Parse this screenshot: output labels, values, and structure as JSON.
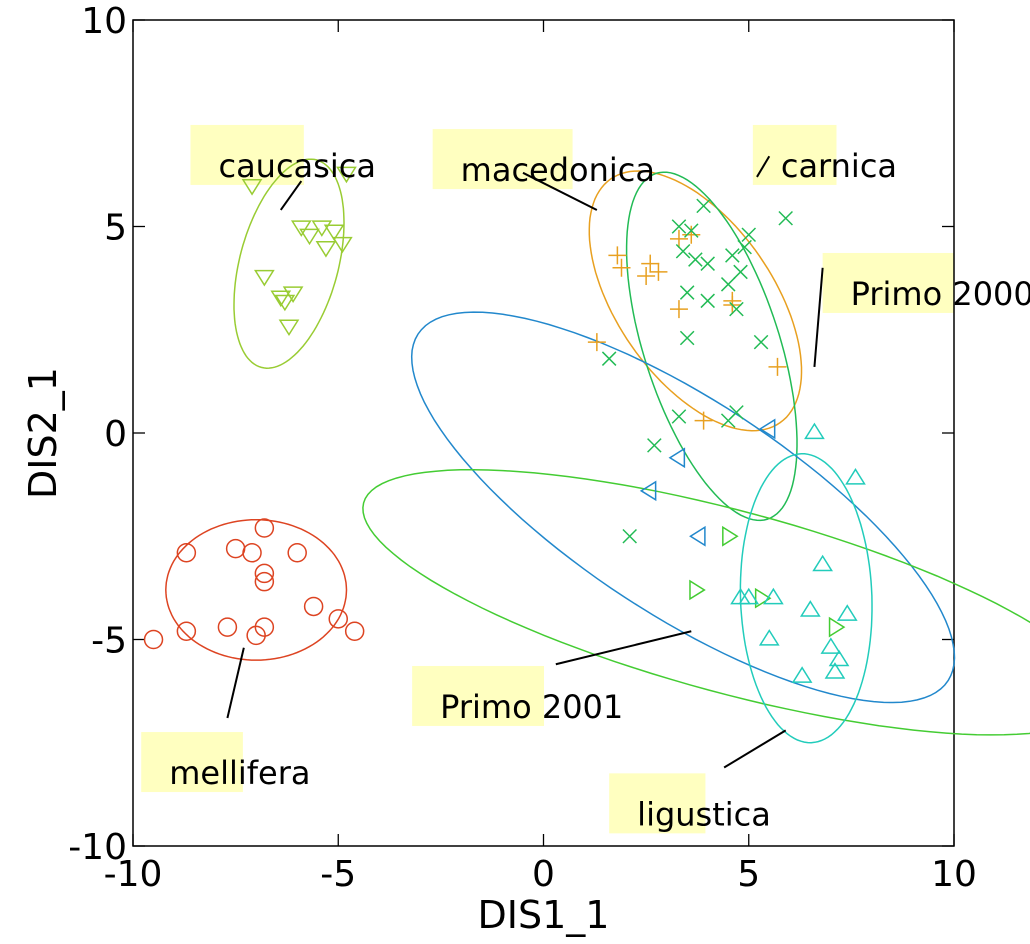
{
  "chart_data": {
    "type": "scatter",
    "title": "",
    "xlabel": "DIS1_1",
    "ylabel": "DIS2_1",
    "xlim": [
      -10,
      10
    ],
    "ylim": [
      -10,
      10
    ],
    "xticks": [
      -10,
      -5,
      0,
      5,
      10
    ],
    "yticks": [
      -10,
      -5,
      0,
      5,
      10
    ],
    "grid": false,
    "label_highlight_color": "#ffffc0",
    "series": [
      {
        "name": "caucasica",
        "marker": "triangle-down",
        "color": "#99cc33",
        "ellipse": {
          "cx": -6.2,
          "cy": 4.1,
          "rx": 2.6,
          "ry": 1.2,
          "angle_deg": 75
        },
        "x": [
          -7.1,
          -4.8,
          -5.9,
          -5.4,
          -5.7,
          -5.1,
          -4.9,
          -5.3,
          -6.8,
          -6.4,
          -6.3,
          -6.1,
          -6.2
        ],
        "y": [
          6.0,
          6.3,
          5.0,
          5.0,
          4.8,
          4.9,
          4.6,
          4.5,
          3.8,
          3.3,
          3.2,
          3.4,
          2.6
        ]
      },
      {
        "name": "mellifera",
        "marker": "circle",
        "color": "#dd4422",
        "ellipse": {
          "cx": -7.0,
          "cy": -3.8,
          "rx": 2.2,
          "ry": 1.7,
          "angle_deg": 0
        },
        "x": [
          -6.8,
          -8.7,
          -7.5,
          -7.1,
          -6.0,
          -6.8,
          -6.8,
          -5.6,
          -5.0,
          -7.7,
          -8.7,
          -6.8,
          -7.0,
          -4.6,
          -9.5
        ],
        "y": [
          -2.3,
          -2.9,
          -2.8,
          -2.9,
          -2.9,
          -3.4,
          -3.6,
          -4.2,
          -4.5,
          -4.7,
          -4.8,
          -4.7,
          -4.9,
          -4.8,
          -5.0
        ]
      },
      {
        "name": "macedonica",
        "marker": "plus",
        "color": "#e8a020",
        "ellipse": {
          "cx": 3.7,
          "cy": 3.2,
          "rx": 3.6,
          "ry": 1.9,
          "angle_deg": -55
        },
        "x": [
          1.8,
          1.9,
          2.6,
          2.5,
          2.8,
          3.3,
          3.6,
          3.3,
          4.6,
          4.6,
          1.3,
          3.9,
          5.7
        ],
        "y": [
          4.3,
          4.0,
          4.1,
          3.8,
          3.9,
          4.7,
          4.8,
          3.0,
          3.2,
          3.1,
          2.2,
          0.3,
          1.6
        ]
      },
      {
        "name": "carnica",
        "marker": "x",
        "color": "#22bb55",
        "ellipse": {
          "cx": 4.1,
          "cy": 2.1,
          "rx": 4.4,
          "ry": 1.65,
          "angle_deg": -72
        },
        "x": [
          3.9,
          5.9,
          3.3,
          3.6,
          5.0,
          4.9,
          3.4,
          4.6,
          3.7,
          4.0,
          4.8,
          4.5,
          3.5,
          4.0,
          4.7,
          3.5,
          5.3,
          1.6,
          4.7,
          3.3,
          4.5,
          2.7,
          2.1
        ],
        "y": [
          5.5,
          5.2,
          5.0,
          4.9,
          4.8,
          4.5,
          4.4,
          4.3,
          4.2,
          4.1,
          3.9,
          3.6,
          3.4,
          3.2,
          3.0,
          2.3,
          2.2,
          1.8,
          0.5,
          0.4,
          0.3,
          -0.3,
          -2.5
        ]
      },
      {
        "name": "Primo 2000",
        "marker": "triangle-left",
        "color": "#2288cc",
        "ellipse": {
          "cx": 3.4,
          "cy": -1.8,
          "rx": 7.7,
          "ry": 2.6,
          "angle_deg": -33
        },
        "x": [
          5.5,
          3.3,
          2.6,
          3.8
        ],
        "y": [
          0.1,
          -0.6,
          -1.4,
          -2.5
        ]
      },
      {
        "name": "Primo 2001",
        "marker": "triangle-right",
        "color": "#44cc33",
        "ellipse": {
          "cx": 4.6,
          "cy": -4.1,
          "rx": 9.3,
          "ry": 2.2,
          "angle_deg": -15
        },
        "x": [
          4.5,
          3.7,
          5.3,
          7.1
        ],
        "y": [
          -2.5,
          -3.8,
          -4.0,
          -4.7
        ]
      },
      {
        "name": "ligustica",
        "marker": "triangle-up",
        "color": "#22ccbb",
        "ellipse": {
          "cx": 6.4,
          "cy": -4.0,
          "rx": 3.5,
          "ry": 1.6,
          "angle_deg": -88
        },
        "x": [
          6.6,
          7.6,
          6.8,
          4.8,
          5.6,
          7.4,
          6.5,
          5.5,
          7.0,
          7.2,
          7.1,
          6.3,
          5.0
        ],
        "y": [
          0.0,
          -1.1,
          -3.2,
          -4.0,
          -4.0,
          -4.4,
          -4.3,
          -5.0,
          -5.2,
          -5.5,
          -5.8,
          -5.9,
          -4.0
        ]
      }
    ],
    "annotations": [
      {
        "text": "caucasica",
        "series": "caucasica",
        "anchor": [
          -8.6,
          6.2
        ],
        "line_from": [
          -6.4,
          5.4
        ],
        "line_to": [
          -5.9,
          6.1
        ]
      },
      {
        "text": "macedonica",
        "series": "macedonica",
        "anchor": [
          -2.7,
          6.1
        ],
        "line_from": [
          1.3,
          5.4
        ],
        "line_to": [
          -0.5,
          6.3
        ]
      },
      {
        "text": "carnica",
        "series": "carnica",
        "anchor": [
          5.1,
          6.2
        ],
        "line_from": [
          5.2,
          6.2
        ],
        "line_to": [
          5.5,
          6.7
        ]
      },
      {
        "text": "Primo 2000",
        "series": "Primo 2000",
        "anchor": [
          6.8,
          3.1
        ],
        "line_from": [
          6.8,
          4.0
        ],
        "line_to": [
          6.6,
          1.6
        ]
      },
      {
        "text": "Primo 2001",
        "series": "Primo 2001",
        "anchor": [
          -3.2,
          -6.9
        ],
        "line_from": [
          0.3,
          -5.6
        ],
        "line_to": [
          3.6,
          -4.8
        ]
      },
      {
        "text": "mellifera",
        "series": "mellifera",
        "anchor": [
          -9.8,
          -8.5
        ],
        "line_from": [
          -7.7,
          -6.9
        ],
        "line_to": [
          -7.3,
          -5.2
        ]
      },
      {
        "text": "ligustica",
        "series": "ligustica",
        "anchor": [
          1.6,
          -9.5
        ],
        "line_from": [
          4.4,
          -8.1
        ],
        "line_to": [
          5.9,
          -7.2
        ]
      }
    ]
  }
}
